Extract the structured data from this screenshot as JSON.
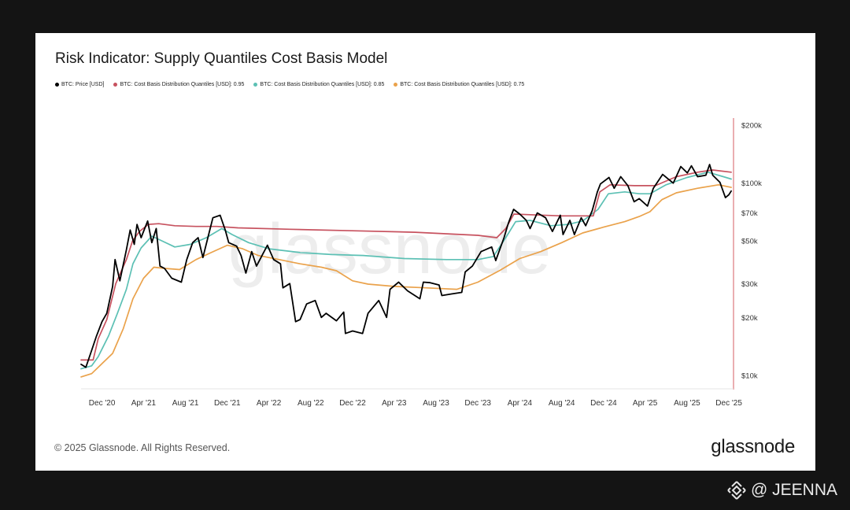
{
  "title": "Risk Indicator: Supply Quantiles Cost Basis Model",
  "footer": {
    "copyright": "© 2025 Glassnode. All Rights Reserved.",
    "brand": "glassnode"
  },
  "watermark": "glassnode",
  "handle": "@ JEENNA",
  "colors": {
    "price": "#000000",
    "q95": "#c7525f",
    "q85": "#5cc0b4",
    "q75": "#eaa24b",
    "axis_line": "#d65c63"
  },
  "chart_data": {
    "type": "line",
    "title": "Risk Indicator: Supply Quantiles Cost Basis Model",
    "y_scale": "log",
    "ylim": [
      8500,
      210000
    ],
    "y_ticks": [
      {
        "value": 200000,
        "label": "$200k"
      },
      {
        "value": 100000,
        "label": "$100k"
      },
      {
        "value": 70000,
        "label": "$70k"
      },
      {
        "value": 50000,
        "label": "$50k"
      },
      {
        "value": 30000,
        "label": "$30k"
      },
      {
        "value": 20000,
        "label": "$20k"
      },
      {
        "value": 10000,
        "label": "$10k"
      }
    ],
    "x_range": [
      "2020-10-01",
      "2025-12-10"
    ],
    "x_ticks": [
      {
        "date": "2020-12-01",
        "label": "Dec '20"
      },
      {
        "date": "2021-04-01",
        "label": "Apr '21"
      },
      {
        "date": "2021-08-01",
        "label": "Aug '21"
      },
      {
        "date": "2021-12-01",
        "label": "Dec '21"
      },
      {
        "date": "2022-04-01",
        "label": "Apr '22"
      },
      {
        "date": "2022-08-01",
        "label": "Aug '22"
      },
      {
        "date": "2022-12-01",
        "label": "Dec '22"
      },
      {
        "date": "2023-04-01",
        "label": "Apr '23"
      },
      {
        "date": "2023-08-01",
        "label": "Aug '23"
      },
      {
        "date": "2023-12-01",
        "label": "Dec '23"
      },
      {
        "date": "2024-04-01",
        "label": "Apr '24"
      },
      {
        "date": "2024-08-01",
        "label": "Aug '24"
      },
      {
        "date": "2024-12-01",
        "label": "Dec '24"
      },
      {
        "date": "2025-04-01",
        "label": "Apr '25"
      },
      {
        "date": "2025-08-01",
        "label": "Aug '25"
      },
      {
        "date": "2025-12-01",
        "label": "Dec '25"
      }
    ],
    "legend_position": "top-left",
    "grid": false,
    "series": [
      {
        "name": "BTC: Price [USD]",
        "color": "#000000",
        "points": [
          [
            "2020-10-01",
            11400
          ],
          [
            "2020-10-15",
            11000
          ],
          [
            "2020-11-01",
            13500
          ],
          [
            "2020-11-15",
            16000
          ],
          [
            "2020-12-01",
            19000
          ],
          [
            "2020-12-15",
            21000
          ],
          [
            "2021-01-01",
            29000
          ],
          [
            "2021-01-08",
            40000
          ],
          [
            "2021-01-22",
            31000
          ],
          [
            "2021-02-10",
            45000
          ],
          [
            "2021-02-21",
            57000
          ],
          [
            "2021-03-05",
            48000
          ],
          [
            "2021-03-13",
            61000
          ],
          [
            "2021-03-25",
            52000
          ],
          [
            "2021-04-13",
            63500
          ],
          [
            "2021-04-25",
            49000
          ],
          [
            "2021-05-08",
            58000
          ],
          [
            "2021-05-19",
            37000
          ],
          [
            "2021-06-01",
            36000
          ],
          [
            "2021-06-22",
            32000
          ],
          [
            "2021-07-20",
            30500
          ],
          [
            "2021-08-05",
            40000
          ],
          [
            "2021-08-22",
            49000
          ],
          [
            "2021-09-07",
            52000
          ],
          [
            "2021-09-21",
            41000
          ],
          [
            "2021-10-10",
            56000
          ],
          [
            "2021-10-20",
            66000
          ],
          [
            "2021-11-10",
            68000
          ],
          [
            "2021-11-25",
            57000
          ],
          [
            "2021-12-05",
            49000
          ],
          [
            "2021-12-28",
            47000
          ],
          [
            "2022-01-10",
            42000
          ],
          [
            "2022-01-24",
            34000
          ],
          [
            "2022-02-10",
            44000
          ],
          [
            "2022-02-24",
            37000
          ],
          [
            "2022-03-28",
            47500
          ],
          [
            "2022-04-15",
            40000
          ],
          [
            "2022-05-05",
            38000
          ],
          [
            "2022-05-12",
            28500
          ],
          [
            "2022-06-01",
            30000
          ],
          [
            "2022-06-18",
            19000
          ],
          [
            "2022-07-01",
            19500
          ],
          [
            "2022-07-20",
            23500
          ],
          [
            "2022-08-14",
            24500
          ],
          [
            "2022-09-01",
            20000
          ],
          [
            "2022-09-15",
            21000
          ],
          [
            "2022-10-15",
            19200
          ],
          [
            "2022-11-05",
            21300
          ],
          [
            "2022-11-10",
            16500
          ],
          [
            "2022-12-01",
            17000
          ],
          [
            "2022-12-30",
            16500
          ],
          [
            "2023-01-15",
            21000
          ],
          [
            "2023-02-15",
            24500
          ],
          [
            "2023-03-10",
            20000
          ],
          [
            "2023-03-20",
            28000
          ],
          [
            "2023-04-14",
            30500
          ],
          [
            "2023-05-10",
            27500
          ],
          [
            "2023-06-15",
            25000
          ],
          [
            "2023-06-25",
            30500
          ],
          [
            "2023-07-15",
            30300
          ],
          [
            "2023-08-10",
            29500
          ],
          [
            "2023-08-18",
            26000
          ],
          [
            "2023-09-15",
            26500
          ],
          [
            "2023-10-15",
            27000
          ],
          [
            "2023-10-25",
            34500
          ],
          [
            "2023-11-15",
            37000
          ],
          [
            "2023-12-10",
            44000
          ],
          [
            "2024-01-10",
            46500
          ],
          [
            "2024-01-22",
            39500
          ],
          [
            "2024-02-15",
            52000
          ],
          [
            "2024-02-28",
            62000
          ],
          [
            "2024-03-14",
            73000
          ],
          [
            "2024-04-01",
            69000
          ],
          [
            "2024-04-20",
            64000
          ],
          [
            "2024-05-01",
            58000
          ],
          [
            "2024-05-22",
            70000
          ],
          [
            "2024-06-15",
            66000
          ],
          [
            "2024-07-05",
            56000
          ],
          [
            "2024-07-28",
            68000
          ],
          [
            "2024-08-05",
            54000
          ],
          [
            "2024-08-25",
            64000
          ],
          [
            "2024-09-07",
            54000
          ],
          [
            "2024-09-27",
            66000
          ],
          [
            "2024-10-10",
            60000
          ],
          [
            "2024-10-29",
            72000
          ],
          [
            "2024-11-13",
            90000
          ],
          [
            "2024-11-22",
            99000
          ],
          [
            "2024-12-17",
            107000
          ],
          [
            "2025-01-01",
            94000
          ],
          [
            "2025-01-20",
            108000
          ],
          [
            "2025-02-10",
            97000
          ],
          [
            "2025-02-28",
            80000
          ],
          [
            "2025-03-15",
            83000
          ],
          [
            "2025-04-08",
            76000
          ],
          [
            "2025-04-25",
            94000
          ],
          [
            "2025-05-22",
            111000
          ],
          [
            "2025-06-22",
            100000
          ],
          [
            "2025-07-14",
            122000
          ],
          [
            "2025-08-02",
            113000
          ],
          [
            "2025-08-14",
            123000
          ],
          [
            "2025-09-01",
            108000
          ],
          [
            "2025-09-25",
            110000
          ],
          [
            "2025-10-06",
            125000
          ],
          [
            "2025-10-15",
            110000
          ],
          [
            "2025-11-05",
            101000
          ],
          [
            "2025-11-21",
            84000
          ],
          [
            "2025-12-01",
            87000
          ],
          [
            "2025-12-08",
            91000
          ]
        ]
      },
      {
        "name": "BTC: Cost Basis Distribution Quantiles [USD]: 0.95",
        "color": "#c7525f",
        "points": [
          [
            "2020-10-01",
            12000
          ],
          [
            "2020-11-05",
            12000
          ],
          [
            "2020-11-20",
            15500
          ],
          [
            "2020-12-15",
            19500
          ],
          [
            "2021-01-10",
            30000
          ],
          [
            "2021-02-10",
            40000
          ],
          [
            "2021-02-28",
            50000
          ],
          [
            "2021-03-20",
            56000
          ],
          [
            "2021-04-15",
            61000
          ],
          [
            "2021-05-15",
            61500
          ],
          [
            "2021-07-01",
            60000
          ],
          [
            "2021-09-01",
            59500
          ],
          [
            "2021-11-01",
            59500
          ],
          [
            "2022-01-01",
            58500
          ],
          [
            "2022-06-01",
            57500
          ],
          [
            "2022-12-01",
            56500
          ],
          [
            "2023-06-01",
            55500
          ],
          [
            "2023-12-01",
            53500
          ],
          [
            "2024-01-25",
            52000
          ],
          [
            "2024-02-20",
            58000
          ],
          [
            "2024-03-15",
            69000
          ],
          [
            "2024-05-01",
            68500
          ],
          [
            "2024-08-01",
            67500
          ],
          [
            "2024-11-01",
            67500
          ],
          [
            "2024-11-20",
            90000
          ],
          [
            "2024-12-20",
            98000
          ],
          [
            "2025-03-01",
            97000
          ],
          [
            "2025-05-01",
            97000
          ],
          [
            "2025-07-01",
            108000
          ],
          [
            "2025-09-01",
            114000
          ],
          [
            "2025-10-15",
            117000
          ],
          [
            "2025-12-08",
            114000
          ]
        ]
      },
      {
        "name": "BTC: Cost Basis Distribution Quantiles [USD]: 0.85",
        "color": "#5cc0b4",
        "points": [
          [
            "2020-10-01",
            10800
          ],
          [
            "2020-11-01",
            11200
          ],
          [
            "2020-11-20",
            12500
          ],
          [
            "2020-12-20",
            16000
          ],
          [
            "2021-01-15",
            21000
          ],
          [
            "2021-02-10",
            28000
          ],
          [
            "2021-03-01",
            38000
          ],
          [
            "2021-03-25",
            46000
          ],
          [
            "2021-04-25",
            53000
          ],
          [
            "2021-05-25",
            50000
          ],
          [
            "2021-07-01",
            46500
          ],
          [
            "2021-08-15",
            48000
          ],
          [
            "2021-10-01",
            52000
          ],
          [
            "2021-11-15",
            58000
          ],
          [
            "2021-12-15",
            54000
          ],
          [
            "2022-02-01",
            49000
          ],
          [
            "2022-04-01",
            45500
          ],
          [
            "2022-07-01",
            43500
          ],
          [
            "2022-10-01",
            42500
          ],
          [
            "2023-01-01",
            42000
          ],
          [
            "2023-05-01",
            40500
          ],
          [
            "2023-09-01",
            40000
          ],
          [
            "2023-12-01",
            40000
          ],
          [
            "2024-01-15",
            41500
          ],
          [
            "2024-02-20",
            52000
          ],
          [
            "2024-03-20",
            63000
          ],
          [
            "2024-05-01",
            64000
          ],
          [
            "2024-07-01",
            60000
          ],
          [
            "2024-08-20",
            61000
          ],
          [
            "2024-10-01",
            63500
          ],
          [
            "2024-11-15",
            73000
          ],
          [
            "2024-12-15",
            88000
          ],
          [
            "2025-02-01",
            90000
          ],
          [
            "2025-03-15",
            88000
          ],
          [
            "2025-04-15",
            88000
          ],
          [
            "2025-06-01",
            98000
          ],
          [
            "2025-08-01",
            107000
          ],
          [
            "2025-10-01",
            114000
          ],
          [
            "2025-11-15",
            108000
          ],
          [
            "2025-12-08",
            105000
          ]
        ]
      },
      {
        "name": "BTC: Cost Basis Distribution Quantiles [USD]: 0.75",
        "color": "#eaa24b",
        "points": [
          [
            "2020-10-01",
            9800
          ],
          [
            "2020-11-01",
            10200
          ],
          [
            "2020-12-01",
            11500
          ],
          [
            "2021-01-01",
            13000
          ],
          [
            "2021-02-01",
            17500
          ],
          [
            "2021-03-01",
            25000
          ],
          [
            "2021-04-01",
            32000
          ],
          [
            "2021-05-01",
            36500
          ],
          [
            "2021-06-01",
            36000
          ],
          [
            "2021-07-15",
            35500
          ],
          [
            "2021-09-01",
            40000
          ],
          [
            "2021-10-15",
            43500
          ],
          [
            "2021-12-01",
            47500
          ],
          [
            "2022-01-15",
            45500
          ],
          [
            "2022-03-01",
            42000
          ],
          [
            "2022-05-01",
            40000
          ],
          [
            "2022-07-01",
            38000
          ],
          [
            "2022-09-01",
            36500
          ],
          [
            "2022-10-15",
            35000
          ],
          [
            "2022-12-01",
            31000
          ],
          [
            "2023-01-15",
            29800
          ],
          [
            "2023-04-01",
            29000
          ],
          [
            "2023-07-01",
            28500
          ],
          [
            "2023-10-01",
            28000
          ],
          [
            "2023-12-01",
            30500
          ],
          [
            "2024-02-01",
            35000
          ],
          [
            "2024-04-01",
            40500
          ],
          [
            "2024-06-01",
            44000
          ],
          [
            "2024-08-01",
            49000
          ],
          [
            "2024-10-01",
            55000
          ],
          [
            "2024-12-01",
            59000
          ],
          [
            "2025-02-01",
            63000
          ],
          [
            "2025-03-15",
            67000
          ],
          [
            "2025-04-15",
            71000
          ],
          [
            "2025-05-20",
            82000
          ],
          [
            "2025-07-01",
            89000
          ],
          [
            "2025-09-01",
            94000
          ],
          [
            "2025-11-01",
            98000
          ],
          [
            "2025-12-08",
            95000
          ]
        ]
      }
    ]
  }
}
